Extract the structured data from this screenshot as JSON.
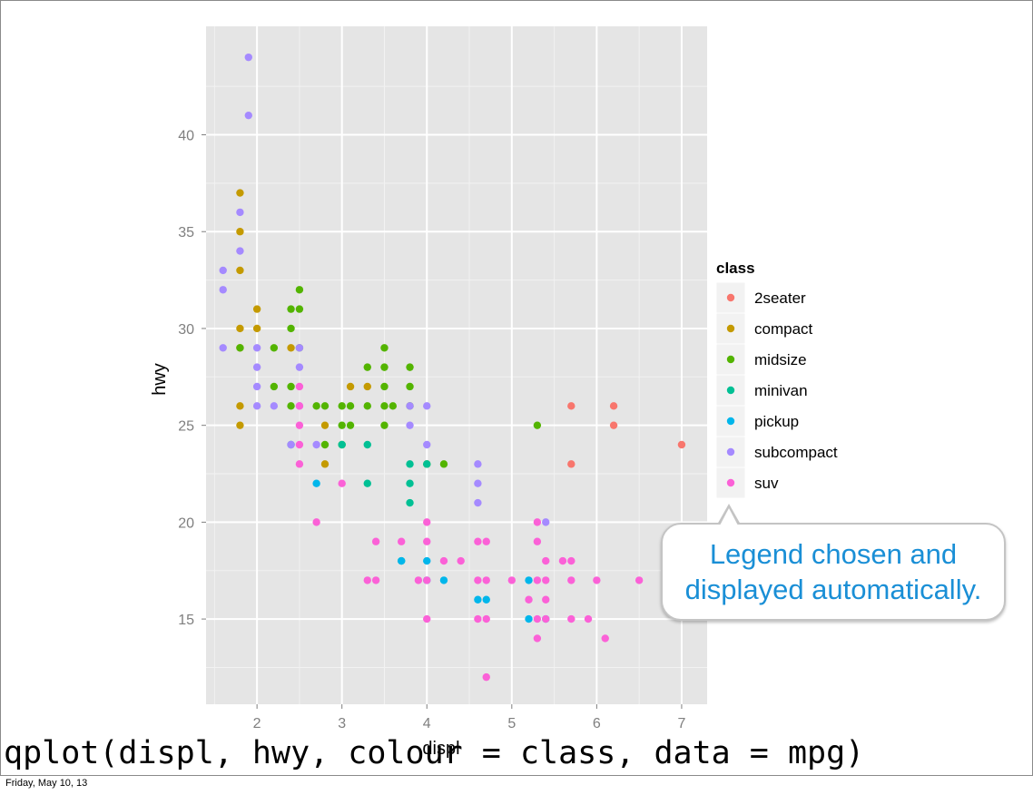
{
  "chart_data": {
    "type": "scatter",
    "xlabel": "displ",
    "ylabel": "hwy",
    "xlim": [
      1.4,
      7.3
    ],
    "ylim": [
      10.6,
      45.6
    ],
    "x_ticks": [
      2,
      3,
      4,
      5,
      6,
      7
    ],
    "x_tick_labels": [
      "2",
      "3",
      "4",
      "5",
      "6",
      "7"
    ],
    "y_ticks": [
      15,
      20,
      25,
      30,
      35,
      40
    ],
    "y_tick_labels": [
      "15",
      "20",
      "25",
      "30",
      "35",
      "40"
    ],
    "grid": true,
    "legend": {
      "title": "class",
      "placement": "right",
      "entries": [
        {
          "label": "2seater",
          "color": "#F8766D"
        },
        {
          "label": "compact",
          "color": "#C49A00"
        },
        {
          "label": "midsize",
          "color": "#53B400"
        },
        {
          "label": "minivan",
          "color": "#00C094"
        },
        {
          "label": "pickup",
          "color": "#00B6EB"
        },
        {
          "label": "subcompact",
          "color": "#A58AFF"
        },
        {
          "label": "suv",
          "color": "#FB61D7"
        }
      ]
    },
    "series": [
      {
        "name": "2seater",
        "color": "#F8766D",
        "points": [
          [
            5.7,
            26
          ],
          [
            5.7,
            23
          ],
          [
            6.2,
            26
          ],
          [
            6.2,
            25
          ],
          [
            7.0,
            24
          ]
        ]
      },
      {
        "name": "compact",
        "color": "#C49A00",
        "points": [
          [
            1.8,
            29
          ],
          [
            1.8,
            26
          ],
          [
            1.8,
            25
          ],
          [
            1.8,
            30
          ],
          [
            1.8,
            33
          ],
          [
            1.8,
            35
          ],
          [
            1.8,
            37
          ],
          [
            2.0,
            31
          ],
          [
            2.0,
            30
          ],
          [
            2.4,
            29
          ],
          [
            2.8,
            25
          ],
          [
            2.8,
            23
          ],
          [
            3.1,
            27
          ],
          [
            3.3,
            27
          ]
        ]
      },
      {
        "name": "midsize",
        "color": "#53B400",
        "points": [
          [
            1.8,
            29
          ],
          [
            2.2,
            27
          ],
          [
            2.4,
            31
          ],
          [
            2.4,
            30
          ],
          [
            2.4,
            27
          ],
          [
            2.4,
            26
          ],
          [
            2.5,
            32
          ],
          [
            2.5,
            31
          ],
          [
            2.5,
            29
          ],
          [
            2.7,
            26
          ],
          [
            2.8,
            24
          ],
          [
            2.8,
            26
          ],
          [
            3.0,
            26
          ],
          [
            3.0,
            25
          ],
          [
            3.0,
            24
          ],
          [
            3.1,
            26
          ],
          [
            3.1,
            25
          ],
          [
            3.3,
            28
          ],
          [
            3.3,
            26
          ],
          [
            3.5,
            29
          ],
          [
            3.5,
            28
          ],
          [
            3.5,
            27
          ],
          [
            3.5,
            26
          ],
          [
            3.5,
            25
          ],
          [
            3.6,
            26
          ],
          [
            3.8,
            28
          ],
          [
            3.8,
            27
          ],
          [
            3.8,
            26
          ],
          [
            4.0,
            23
          ],
          [
            4.2,
            23
          ],
          [
            5.3,
            25
          ],
          [
            2.2,
            29
          ]
        ]
      },
      {
        "name": "minivan",
        "color": "#00C094",
        "points": [
          [
            2.4,
            24
          ],
          [
            3.0,
            24
          ],
          [
            3.3,
            24
          ],
          [
            3.3,
            22
          ],
          [
            3.8,
            23
          ],
          [
            3.8,
            22
          ],
          [
            3.8,
            21
          ],
          [
            3.7,
            18
          ],
          [
            4.0,
            23
          ]
        ]
      },
      {
        "name": "pickup",
        "color": "#00B6EB",
        "points": [
          [
            2.7,
            22
          ],
          [
            3.7,
            18
          ],
          [
            4.0,
            18
          ],
          [
            4.0,
            17
          ],
          [
            4.2,
            17
          ],
          [
            4.6,
            16
          ],
          [
            4.7,
            16
          ],
          [
            5.2,
            17
          ],
          [
            5.2,
            15
          ],
          [
            5.4,
            15
          ]
        ]
      },
      {
        "name": "subcompact",
        "color": "#A58AFF",
        "points": [
          [
            1.6,
            33
          ],
          [
            1.6,
            32
          ],
          [
            1.6,
            29
          ],
          [
            1.8,
            36
          ],
          [
            1.8,
            34
          ],
          [
            1.9,
            44
          ],
          [
            1.9,
            41
          ],
          [
            2.0,
            29
          ],
          [
            2.0,
            28
          ],
          [
            2.0,
            27
          ],
          [
            2.0,
            26
          ],
          [
            2.2,
            26
          ],
          [
            2.4,
            24
          ],
          [
            2.5,
            29
          ],
          [
            2.5,
            28
          ],
          [
            2.5,
            26
          ],
          [
            2.7,
            24
          ],
          [
            3.8,
            26
          ],
          [
            3.8,
            25
          ],
          [
            4.0,
            26
          ],
          [
            4.0,
            24
          ],
          [
            4.6,
            23
          ],
          [
            4.6,
            22
          ],
          [
            4.6,
            21
          ],
          [
            5.4,
            20
          ]
        ]
      },
      {
        "name": "suv",
        "color": "#FB61D7",
        "points": [
          [
            2.5,
            27
          ],
          [
            2.5,
            26
          ],
          [
            2.5,
            25
          ],
          [
            2.5,
            24
          ],
          [
            2.5,
            23
          ],
          [
            2.7,
            20
          ],
          [
            3.0,
            22
          ],
          [
            3.3,
            17
          ],
          [
            3.4,
            19
          ],
          [
            3.4,
            17
          ],
          [
            3.7,
            19
          ],
          [
            3.9,
            17
          ],
          [
            4.0,
            20
          ],
          [
            4.0,
            19
          ],
          [
            4.0,
            17
          ],
          [
            4.0,
            15
          ],
          [
            4.2,
            18
          ],
          [
            4.4,
            18
          ],
          [
            4.6,
            19
          ],
          [
            4.6,
            17
          ],
          [
            4.6,
            15
          ],
          [
            4.7,
            19
          ],
          [
            4.7,
            17
          ],
          [
            4.7,
            15
          ],
          [
            4.7,
            12
          ],
          [
            5.0,
            17
          ],
          [
            5.3,
            20
          ],
          [
            5.3,
            19
          ],
          [
            5.3,
            17
          ],
          [
            5.3,
            15
          ],
          [
            5.3,
            14
          ],
          [
            5.4,
            18
          ],
          [
            5.4,
            17
          ],
          [
            5.4,
            16
          ],
          [
            5.6,
            18
          ],
          [
            5.7,
            18
          ],
          [
            5.7,
            17
          ],
          [
            5.7,
            15
          ],
          [
            5.9,
            15
          ],
          [
            6.0,
            17
          ],
          [
            6.1,
            14
          ],
          [
            6.5,
            17
          ],
          [
            5.2,
            16
          ],
          [
            5.4,
            15
          ]
        ]
      }
    ]
  },
  "callout": {
    "text": "Legend chosen and\ndisplayed automatically."
  },
  "code": "qplot(displ, hwy, colour = class, data = mpg)",
  "footer": {
    "date": "Friday, May 10, 13"
  }
}
